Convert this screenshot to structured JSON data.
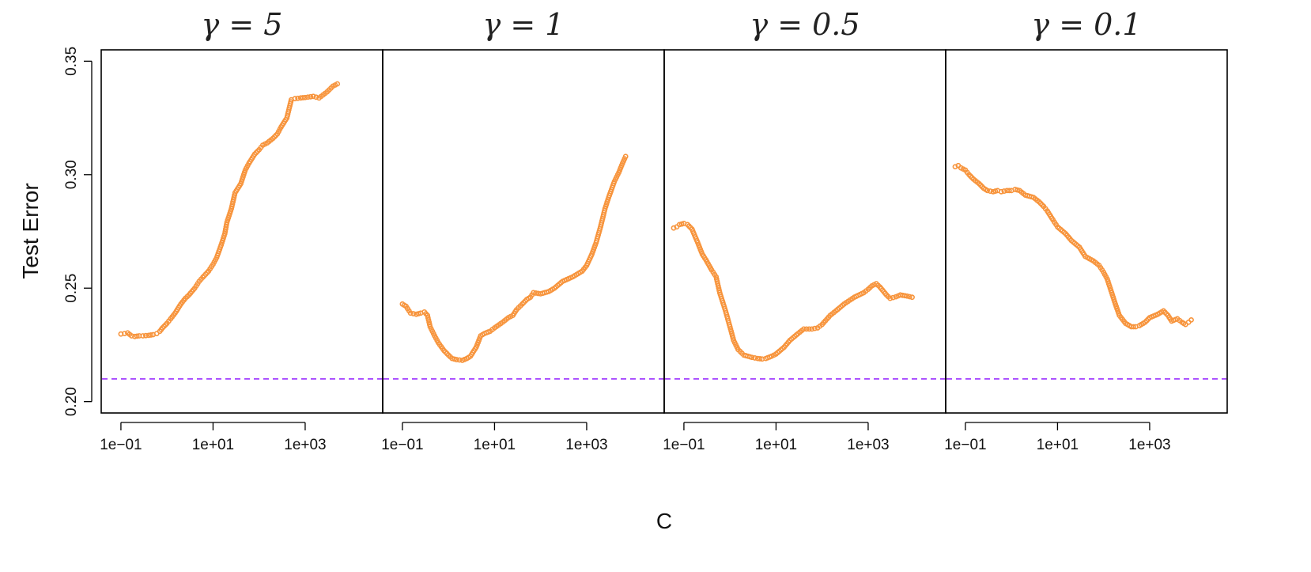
{
  "chart_data": {
    "type": "scatter",
    "xlabel": "C",
    "ylabel": "Test Error",
    "x_scale": "log10",
    "xlim": [
      0.06,
      30000
    ],
    "ylim": [
      0.195,
      0.355
    ],
    "y_ticks": [
      0.2,
      0.25,
      0.3,
      0.35
    ],
    "y_tick_labels": [
      "0.20",
      "0.25",
      "0.30",
      "0.35"
    ],
    "x_ticks": [
      0.1,
      10,
      1000
    ],
    "x_tick_labels": [
      "1e−01",
      "1e+01",
      "1e+03"
    ],
    "grid": false,
    "reference_line": {
      "y": 0.21,
      "color": "#9b30ff",
      "style": "dashed"
    },
    "marker_color": "#f7943c",
    "panels": [
      {
        "title": "γ = 5",
        "points": [
          [
            0.1,
            0.2298
          ],
          [
            0.12,
            0.23
          ],
          [
            0.14,
            0.2303
          ],
          [
            0.17,
            0.229
          ],
          [
            0.2,
            0.2287
          ],
          [
            0.25,
            0.229
          ],
          [
            0.3,
            0.229
          ],
          [
            0.4,
            0.2292
          ],
          [
            0.5,
            0.2295
          ],
          [
            0.6,
            0.23
          ],
          [
            0.7,
            0.231
          ],
          [
            0.8,
            0.2325
          ],
          [
            1.0,
            0.2345
          ],
          [
            1.2,
            0.2365
          ],
          [
            1.5,
            0.239
          ],
          [
            2,
            0.243
          ],
          [
            2.5,
            0.2455
          ],
          [
            3,
            0.247
          ],
          [
            4,
            0.25
          ],
          [
            5,
            0.253
          ],
          [
            6,
            0.2548
          ],
          [
            8,
            0.2575
          ],
          [
            10,
            0.2605
          ],
          [
            12,
            0.2635
          ],
          [
            15,
            0.269
          ],
          [
            18,
            0.274
          ],
          [
            20,
            0.279
          ],
          [
            25,
            0.285
          ],
          [
            30,
            0.292
          ],
          [
            40,
            0.296
          ],
          [
            50,
            0.302
          ],
          [
            60,
            0.305
          ],
          [
            80,
            0.309
          ],
          [
            100,
            0.311
          ],
          [
            120,
            0.313
          ],
          [
            150,
            0.314
          ],
          [
            200,
            0.316
          ],
          [
            250,
            0.318
          ],
          [
            300,
            0.321
          ],
          [
            400,
            0.325
          ],
          [
            500,
            0.333
          ],
          [
            600,
            0.3335
          ],
          [
            800,
            0.3338
          ],
          [
            1000,
            0.334
          ],
          [
            1500,
            0.3345
          ],
          [
            2000,
            0.3338
          ],
          [
            3000,
            0.3365
          ],
          [
            4000,
            0.339
          ],
          [
            5000,
            0.34
          ]
        ]
      },
      {
        "title": "γ = 1",
        "points": [
          [
            0.1,
            0.243
          ],
          [
            0.12,
            0.242
          ],
          [
            0.15,
            0.239
          ],
          [
            0.2,
            0.2385
          ],
          [
            0.25,
            0.239
          ],
          [
            0.3,
            0.2395
          ],
          [
            0.35,
            0.238
          ],
          [
            0.4,
            0.233
          ],
          [
            0.5,
            0.229
          ],
          [
            0.6,
            0.226
          ],
          [
            0.8,
            0.2225
          ],
          [
            1.0,
            0.2205
          ],
          [
            1.2,
            0.219
          ],
          [
            1.5,
            0.2185
          ],
          [
            2,
            0.2182
          ],
          [
            2.5,
            0.219
          ],
          [
            3,
            0.22
          ],
          [
            4,
            0.224
          ],
          [
            5,
            0.229
          ],
          [
            6,
            0.23
          ],
          [
            8,
            0.231
          ],
          [
            10,
            0.2325
          ],
          [
            15,
            0.235
          ],
          [
            20,
            0.237
          ],
          [
            25,
            0.238
          ],
          [
            30,
            0.2405
          ],
          [
            40,
            0.243
          ],
          [
            50,
            0.245
          ],
          [
            60,
            0.246
          ],
          [
            70,
            0.248
          ],
          [
            100,
            0.2475
          ],
          [
            150,
            0.2485
          ],
          [
            200,
            0.25
          ],
          [
            300,
            0.253
          ],
          [
            500,
            0.255
          ],
          [
            800,
            0.2575
          ],
          [
            1000,
            0.26
          ],
          [
            1300,
            0.265
          ],
          [
            1600,
            0.27
          ],
          [
            2000,
            0.277
          ],
          [
            2500,
            0.285
          ],
          [
            3000,
            0.29
          ],
          [
            4000,
            0.297
          ],
          [
            5000,
            0.301
          ],
          [
            6000,
            0.305
          ],
          [
            7000,
            0.308
          ]
        ]
      },
      {
        "title": "γ = 0.5",
        "points": [
          [
            0.06,
            0.2765
          ],
          [
            0.07,
            0.277
          ],
          [
            0.08,
            0.278
          ],
          [
            0.1,
            0.2785
          ],
          [
            0.12,
            0.278
          ],
          [
            0.15,
            0.276
          ],
          [
            0.2,
            0.27
          ],
          [
            0.25,
            0.265
          ],
          [
            0.3,
            0.2625
          ],
          [
            0.4,
            0.258
          ],
          [
            0.5,
            0.255
          ],
          [
            0.6,
            0.248
          ],
          [
            0.8,
            0.24
          ],
          [
            1.0,
            0.233
          ],
          [
            1.2,
            0.227
          ],
          [
            1.5,
            0.223
          ],
          [
            2,
            0.2205
          ],
          [
            3,
            0.2195
          ],
          [
            4,
            0.219
          ],
          [
            5,
            0.2188
          ],
          [
            6,
            0.219
          ],
          [
            8,
            0.22
          ],
          [
            10,
            0.221
          ],
          [
            15,
            0.224
          ],
          [
            20,
            0.227
          ],
          [
            30,
            0.23
          ],
          [
            40,
            0.232
          ],
          [
            60,
            0.232
          ],
          [
            80,
            0.2325
          ],
          [
            100,
            0.234
          ],
          [
            150,
            0.238
          ],
          [
            200,
            0.24
          ],
          [
            300,
            0.243
          ],
          [
            500,
            0.246
          ],
          [
            800,
            0.248
          ],
          [
            1000,
            0.2495
          ],
          [
            1200,
            0.251
          ],
          [
            1500,
            0.252
          ],
          [
            1800,
            0.2505
          ],
          [
            2500,
            0.247
          ],
          [
            3000,
            0.2455
          ],
          [
            4000,
            0.2462
          ],
          [
            5000,
            0.247
          ],
          [
            7000,
            0.2465
          ],
          [
            9000,
            0.246
          ]
        ]
      },
      {
        "title": "γ = 0.1",
        "points": [
          [
            0.06,
            0.3035
          ],
          [
            0.07,
            0.304
          ],
          [
            0.08,
            0.303
          ],
          [
            0.1,
            0.302
          ],
          [
            0.12,
            0.3
          ],
          [
            0.15,
            0.298
          ],
          [
            0.2,
            0.296
          ],
          [
            0.25,
            0.294
          ],
          [
            0.3,
            0.293
          ],
          [
            0.4,
            0.2925
          ],
          [
            0.5,
            0.293
          ],
          [
            0.6,
            0.2925
          ],
          [
            0.8,
            0.293
          ],
          [
            1.0,
            0.293
          ],
          [
            1.2,
            0.2935
          ],
          [
            1.5,
            0.293
          ],
          [
            2,
            0.291
          ],
          [
            3,
            0.29
          ],
          [
            4,
            0.288
          ],
          [
            5,
            0.286
          ],
          [
            6,
            0.284
          ],
          [
            8,
            0.28
          ],
          [
            10,
            0.277
          ],
          [
            15,
            0.274
          ],
          [
            20,
            0.271
          ],
          [
            30,
            0.268
          ],
          [
            40,
            0.264
          ],
          [
            60,
            0.262
          ],
          [
            80,
            0.26
          ],
          [
            100,
            0.257
          ],
          [
            120,
            0.254
          ],
          [
            150,
            0.248
          ],
          [
            180,
            0.243
          ],
          [
            220,
            0.238
          ],
          [
            300,
            0.2345
          ],
          [
            400,
            0.233
          ],
          [
            500,
            0.233
          ],
          [
            600,
            0.2335
          ],
          [
            800,
            0.235
          ],
          [
            1000,
            0.237
          ],
          [
            1500,
            0.2385
          ],
          [
            2000,
            0.24
          ],
          [
            2500,
            0.238
          ],
          [
            3000,
            0.2355
          ],
          [
            4000,
            0.2365
          ],
          [
            5000,
            0.235
          ],
          [
            6000,
            0.234
          ],
          [
            7000,
            0.235
          ],
          [
            8000,
            0.236
          ]
        ]
      }
    ]
  }
}
